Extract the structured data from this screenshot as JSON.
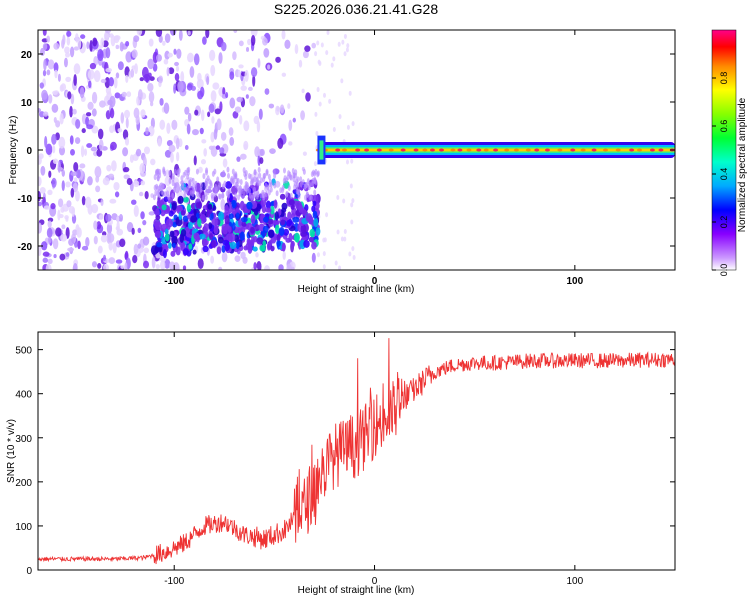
{
  "title": "S225.2026.036.21.41.G28",
  "colors": {
    "spectral_line": "#33ccaa",
    "snr_line": "#ee3333",
    "scatter": "#7b2ff2"
  },
  "chart_data": [
    {
      "type": "heatmap",
      "xlabel": "Height of straight line (km)",
      "ylabel": "Frequency (Hz)",
      "xlim": [
        -168,
        150
      ],
      "ylim": [
        -25,
        25
      ],
      "xticks": [
        -100,
        0,
        100
      ],
      "yticks": [
        -20,
        -10,
        0,
        10,
        20
      ],
      "colorbar": {
        "label": "Normalized spectral amplitude",
        "ticks": [
          0.0,
          0.2,
          0.4,
          0.6,
          0.8
        ],
        "range": [
          0,
          1
        ],
        "colormap": [
          "#ffffff",
          "#cc99ff",
          "#8800ff",
          "#0000ff",
          "#00ccff",
          "#00ff88",
          "#55ff00",
          "#ffff00",
          "#ff8800",
          "#ff0000",
          "#ff0088"
        ]
      },
      "features": [
        {
          "name": "noise",
          "x": [
            -168,
            -30
          ],
          "y": [
            -25,
            25
          ],
          "amplitude": 0.15
        },
        {
          "name": "Doppler ridge",
          "x": [
            -110,
            -28
          ],
          "y_start": -17,
          "y_end": -15,
          "amplitude": 0.35
        },
        {
          "name": "carrier",
          "x": [
            -28,
            150
          ],
          "y": 0,
          "amplitude": 0.9
        }
      ]
    },
    {
      "type": "line",
      "xlabel": "Height of straight line (km)",
      "ylabel": "SNR (10 * v/v)",
      "xlim": [
        -168,
        150
      ],
      "ylim": [
        0,
        540
      ],
      "xticks": [
        -100,
        0,
        100
      ],
      "yticks": [
        0,
        100,
        200,
        300,
        400,
        500
      ],
      "series": [
        {
          "x": [
            -168,
            -150,
            -130,
            -115,
            -105,
            -95,
            -85,
            -75,
            -65,
            -55,
            -45,
            -35,
            -30,
            -25,
            -20,
            -15,
            -10,
            -5,
            0,
            5,
            10,
            15,
            20,
            25,
            30,
            40,
            50,
            60,
            80,
            100,
            120,
            150
          ],
          "values": [
            25,
            25,
            25,
            28,
            40,
            60,
            100,
            110,
            80,
            70,
            90,
            140,
            190,
            230,
            260,
            270,
            280,
            300,
            330,
            340,
            360,
            390,
            410,
            430,
            450,
            465,
            470,
            470,
            475,
            475,
            475,
            478
          ]
        }
      ]
    }
  ]
}
